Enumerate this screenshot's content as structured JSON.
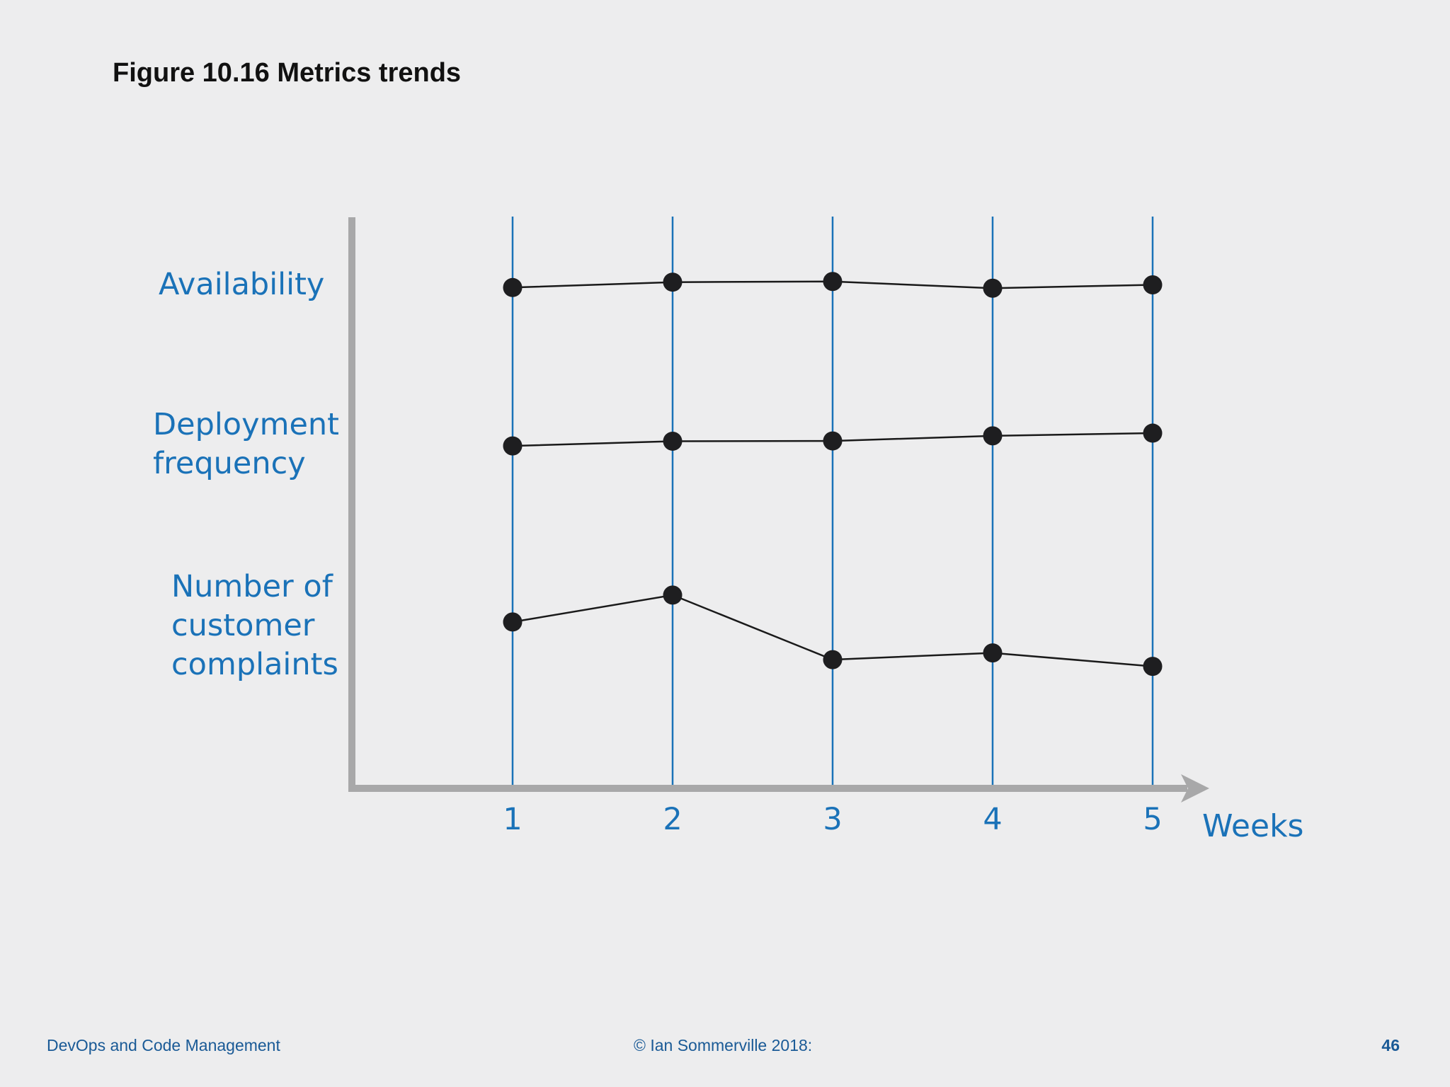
{
  "slide": {
    "title": "Figure 10.16 Metrics trends",
    "footer_left": "DevOps and Code Management",
    "footer_center": "© Ian Sommerville 2018:",
    "page_number": "46"
  },
  "colors": {
    "background": "#ededee",
    "accent_blue": "#1a72b8",
    "axis_gray": "#a8a8a9",
    "marker_black": "#1e1e20"
  },
  "chart_data": {
    "type": "line",
    "xlabel": "Weeks",
    "x": [
      1,
      2,
      3,
      4,
      5
    ],
    "x_tick_labels": [
      "1",
      "2",
      "3",
      "4",
      "5"
    ],
    "layout_note_free": true,
    "series": [
      {
        "name": "Availability",
        "label_lines": [
          "Availability"
        ],
        "values": [
          0.3,
          0.7,
          0.75,
          0.25,
          0.5
        ]
      },
      {
        "name": "Deployment frequency",
        "label_lines": [
          "Deployment",
          "frequency"
        ],
        "values": [
          0.1,
          0.45,
          0.47,
          0.85,
          1.05
        ]
      },
      {
        "name": "Number of customer complaints",
        "label_lines": [
          "Number of",
          "customer",
          "complaints"
        ],
        "values": [
          0.9,
          2.9,
          -1.9,
          -1.4,
          -2.4
        ]
      }
    ],
    "grid": "vertical lines at each week",
    "y_axis": "no numeric scale; one band per metric"
  }
}
